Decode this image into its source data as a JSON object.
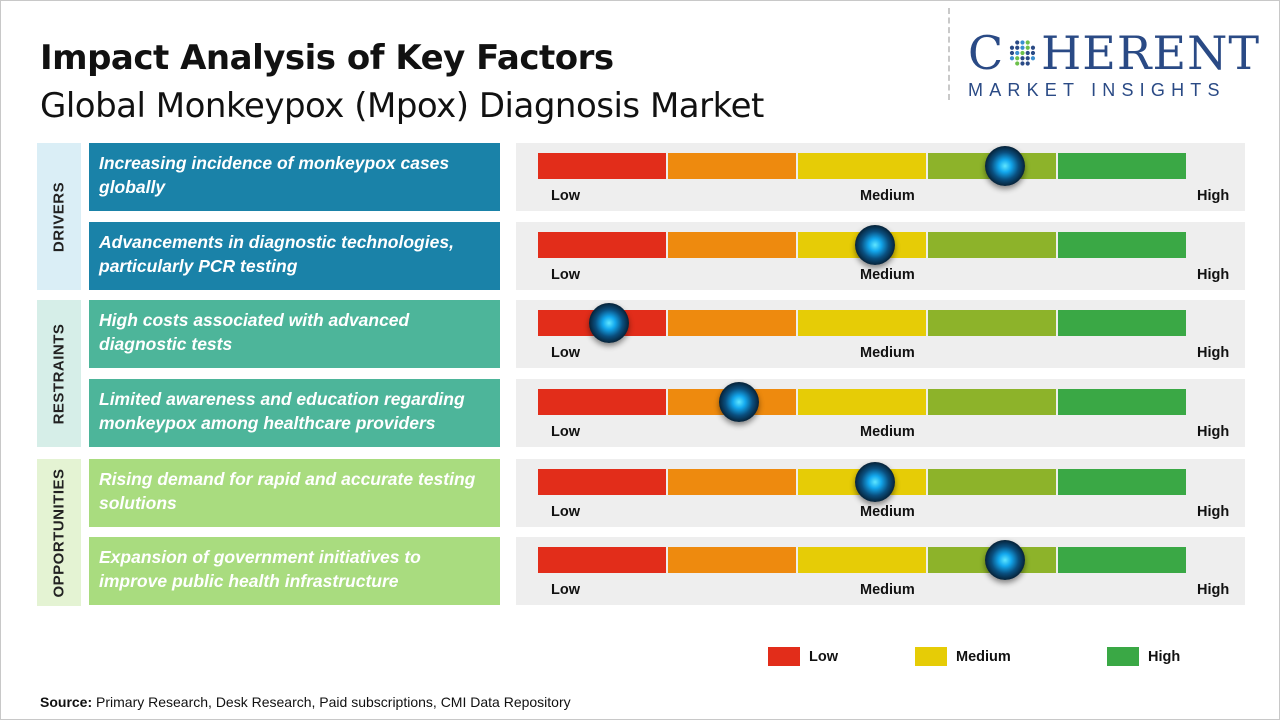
{
  "title": "Impact Analysis of Key Factors",
  "subtitle": "Global Monkeypox (Mpox) Diagnosis Market",
  "logo": {
    "word_start": "C",
    "word_end": "HERENT",
    "tagline": "MARKET INSIGHTS"
  },
  "scale_labels": {
    "low": "Low",
    "medium": "Medium",
    "high": "High"
  },
  "scale_colors": [
    "#e22d1a",
    "#ee8a0e",
    "#e6cc06",
    "#8db32a",
    "#3aa845"
  ],
  "categories": [
    {
      "label": "DRIVERS",
      "color": "#daeef6"
    },
    {
      "label": "RESTRAINTS",
      "color": "#d6eee8"
    },
    {
      "label": "OPPORTUNITIES",
      "color": "#e4f3d3"
    }
  ],
  "chart_data": {
    "type": "gauge",
    "scale": [
      "Low",
      "Medium",
      "High"
    ],
    "range": [
      0,
      5
    ],
    "factors": [
      {
        "category": "DRIVERS",
        "text": "Increasing incidence of monkeypox cases globally",
        "impact": 3.6,
        "color": "#1a82a8"
      },
      {
        "category": "DRIVERS",
        "text": "Advancements in diagnostic technologies, particularly PCR testing",
        "impact": 2.6,
        "color": "#1a82a8"
      },
      {
        "category": "RESTRAINTS",
        "text": "High costs associated with advanced diagnostic tests",
        "impact": 0.55,
        "color": "#4db59a"
      },
      {
        "category": "RESTRAINTS",
        "text": "Limited awareness and education regarding monkeypox among healthcare providers",
        "impact": 1.55,
        "color": "#4db59a"
      },
      {
        "category": "OPPORTUNITIES",
        "text": "Rising demand for rapid and accurate testing solutions",
        "impact": 2.6,
        "color": "#a9dc7f"
      },
      {
        "category": "OPPORTUNITIES",
        "text": "Expansion of government initiatives to improve public health infrastructure",
        "impact": 3.6,
        "color": "#a9dc7f"
      }
    ]
  },
  "legend": [
    {
      "label": "Low",
      "color": "#e22d1a"
    },
    {
      "label": "Medium",
      "color": "#e6cc06"
    },
    {
      "label": "High",
      "color": "#3aa845"
    }
  ],
  "source": {
    "key": "Source:",
    "text": " Primary Research, Desk Research, Paid subscriptions, CMI Data Repository"
  }
}
